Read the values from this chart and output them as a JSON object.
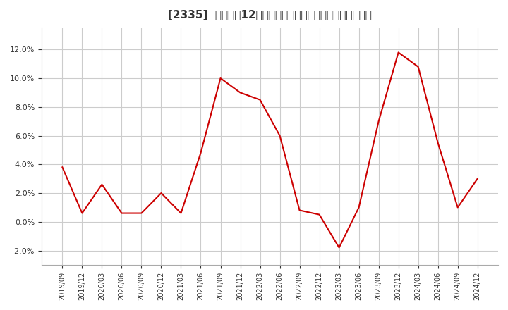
{
  "title": "[2335]  売上高の12か月移動合計の対前年同期増減率の推移",
  "title_fontsize": 11,
  "line_color": "#cc0000",
  "background_color": "#ffffff",
  "grid_color": "#cccccc",
  "ylim": [
    -0.03,
    0.135
  ],
  "yticks": [
    -0.02,
    0.0,
    0.02,
    0.04,
    0.06,
    0.08,
    0.1,
    0.12
  ],
  "dates": [
    "2019/09",
    "2019/12",
    "2020/03",
    "2020/06",
    "2020/09",
    "2020/12",
    "2021/03",
    "2021/06",
    "2021/09",
    "2021/12",
    "2022/03",
    "2022/06",
    "2022/09",
    "2022/12",
    "2023/03",
    "2023/06",
    "2023/09",
    "2023/12",
    "2024/03",
    "2024/06",
    "2024/09",
    "2024/12"
  ],
  "values": [
    0.038,
    0.006,
    0.026,
    0.006,
    0.006,
    0.02,
    0.006,
    0.048,
    0.1,
    0.09,
    0.085,
    0.06,
    0.008,
    0.005,
    -0.018,
    0.01,
    0.07,
    0.118,
    0.108,
    0.055,
    0.01,
    0.03
  ]
}
